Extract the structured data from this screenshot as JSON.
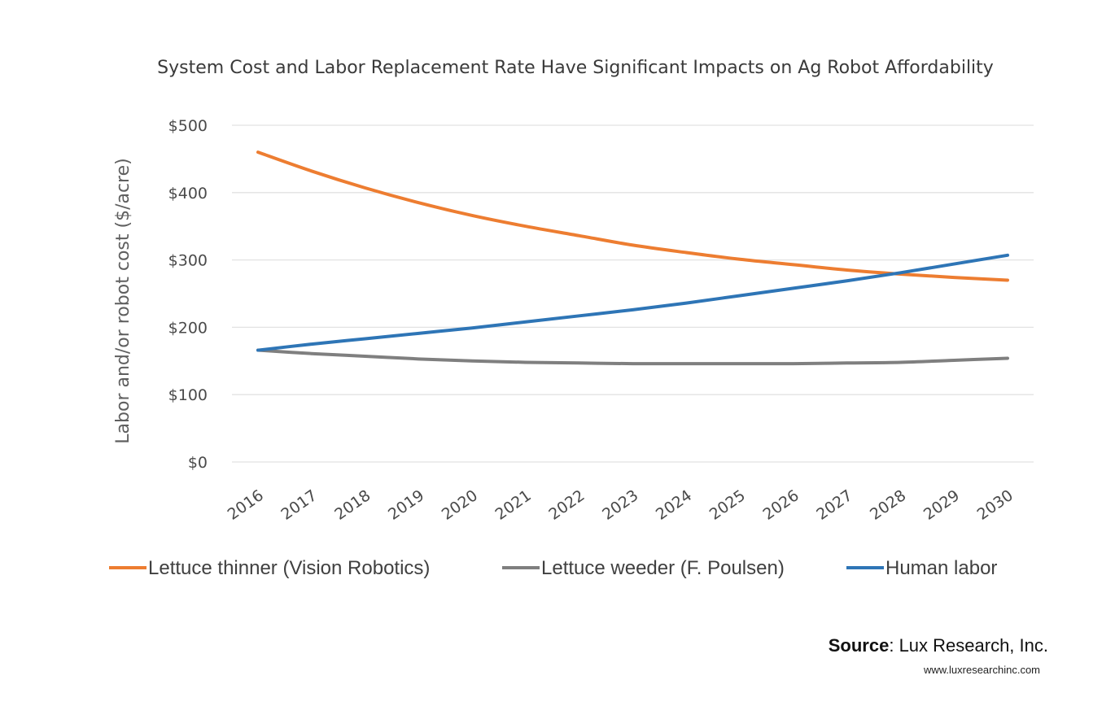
{
  "chart_data": {
    "type": "line",
    "title": "System Cost and Labor Replacement Rate Have Significant Impacts on Ag Robot Affordability",
    "xlabel": "",
    "ylabel": "Labor and/or robot cost ($/acre)",
    "categories": [
      "2016",
      "2017",
      "2018",
      "2019",
      "2020",
      "2021",
      "2022",
      "2023",
      "2024",
      "2025",
      "2026",
      "2027",
      "2028",
      "2029",
      "2030"
    ],
    "ylim": [
      0,
      500
    ],
    "yticks": [
      0,
      100,
      200,
      300,
      400,
      500
    ],
    "ytick_labels": [
      "$0",
      "$100",
      "$200",
      "$300",
      "$400",
      "$500"
    ],
    "grid": true,
    "legend_position": "bottom",
    "series": [
      {
        "name": "Lettuce thinner (Vision Robotics)",
        "color": "#ed7d31",
        "values": [
          460,
          432,
          407,
          385,
          366,
          350,
          336,
          322,
          311,
          301,
          293,
          285,
          279,
          274,
          270
        ]
      },
      {
        "name": "Lettuce weeder (F. Poulsen)",
        "color": "#7f7f7f",
        "values": [
          166,
          161,
          157,
          153,
          150,
          148,
          147,
          146,
          146,
          146,
          146,
          147,
          148,
          151,
          154
        ]
      },
      {
        "name": "Human labor",
        "color": "#2e75b6",
        "values": [
          166,
          175,
          183,
          191,
          199,
          208,
          217,
          226,
          236,
          247,
          258,
          269,
          281,
          294,
          307
        ]
      }
    ]
  },
  "source": {
    "label": "Source",
    "name": ": Lux Research, Inc.",
    "url": "www.luxresearchinc.com"
  }
}
